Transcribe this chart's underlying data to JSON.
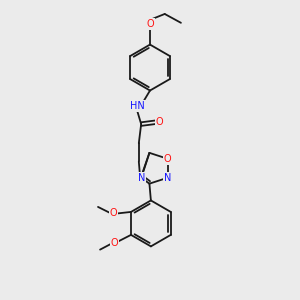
{
  "background_color": "#ebebeb",
  "bond_color": "#1a1a1a",
  "N_color": "#1414ff",
  "O_color": "#ff1414",
  "font_size": 7.0,
  "lw": 1.3,
  "figsize": [
    3.0,
    3.0
  ],
  "dpi": 100,
  "xlim": [
    0,
    10
  ],
  "ylim": [
    0,
    10
  ]
}
